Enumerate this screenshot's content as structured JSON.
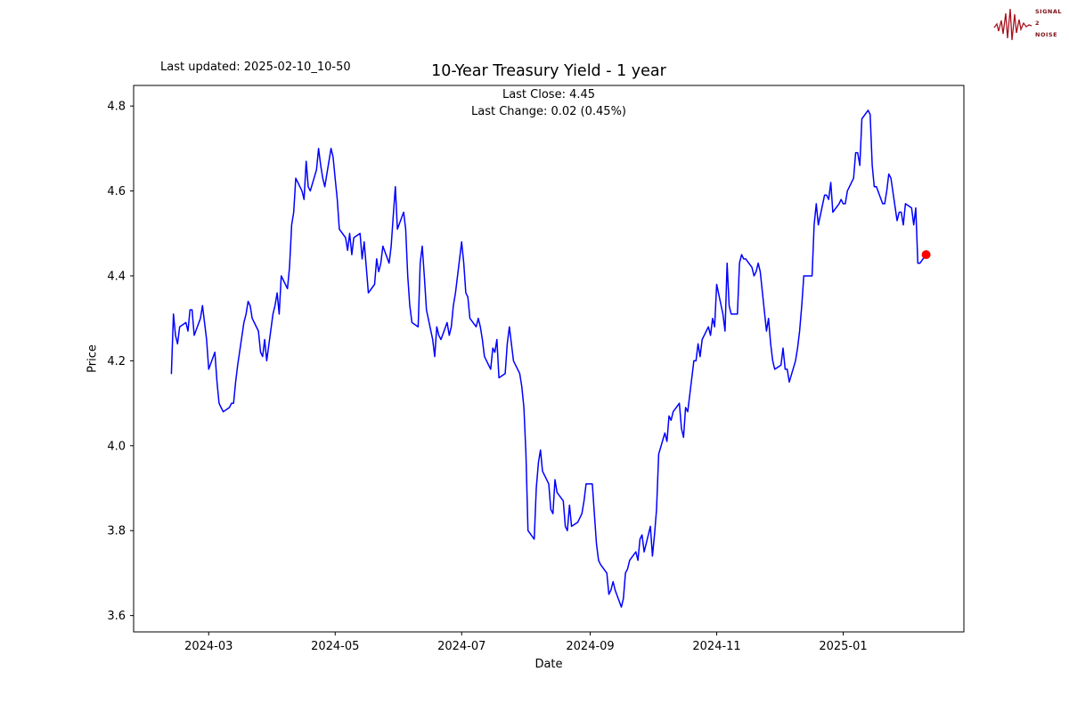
{
  "figure": {
    "last_updated": "Last updated: 2025-02-10_10-50",
    "title": "10-Year Treasury Yield - 1 year",
    "subtitle_line1": "Last Close: 4.45",
    "subtitle_line2": "Last Change: 0.02 (0.45%)"
  },
  "logo": {
    "line1": "SIGNAL",
    "line2": "2",
    "line3": "NOISE",
    "color": "#a6121f"
  },
  "chart_data": {
    "type": "line",
    "title": "10-Year Treasury Yield - 1 year",
    "xlabel": "Date",
    "ylabel": "Price",
    "legend": "none",
    "grid": false,
    "series_name": "10-Year Treasury Yield",
    "series_color": "#0000ff",
    "marker_color": "#ff0000",
    "last_close": 4.45,
    "last_change": "0.02 (0.45%)",
    "start_date": "2024-02-12",
    "end_date": "2025-02-10",
    "frequency": "business_days",
    "ylim_data": [
      3.62,
      4.79
    ],
    "yticks": [
      {
        "value": 3.6,
        "label": "3.6"
      },
      {
        "value": 3.8,
        "label": "3.8"
      },
      {
        "value": 4.0,
        "label": "4.0"
      },
      {
        "value": 4.2,
        "label": "4.2"
      },
      {
        "value": 4.4,
        "label": "4.4"
      },
      {
        "value": 4.6,
        "label": "4.6"
      },
      {
        "value": 4.8,
        "label": "4.8"
      }
    ],
    "xticks": [
      {
        "date": "2024-03-01",
        "label": "2024-03"
      },
      {
        "date": "2024-05-01",
        "label": "2024-05"
      },
      {
        "date": "2024-07-01",
        "label": "2024-07"
      },
      {
        "date": "2024-09-01",
        "label": "2024-09"
      },
      {
        "date": "2024-11-01",
        "label": "2024-11"
      },
      {
        "date": "2025-01-01",
        "label": "2025-01"
      }
    ],
    "values": [
      4.17,
      4.31,
      4.26,
      4.24,
      4.28,
      4.29,
      4.27,
      4.32,
      4.32,
      4.26,
      4.3,
      4.33,
      4.29,
      4.25,
      4.18,
      4.22,
      4.15,
      4.1,
      4.09,
      4.08,
      4.09,
      4.1,
      4.1,
      4.15,
      4.19,
      4.29,
      4.31,
      4.34,
      4.33,
      4.3,
      4.27,
      4.22,
      4.21,
      4.25,
      4.2,
      4.31,
      4.33,
      4.36,
      4.31,
      4.4,
      4.37,
      4.42,
      4.52,
      4.55,
      4.63,
      4.6,
      4.58,
      4.67,
      4.61,
      4.6,
      4.65,
      4.7,
      4.66,
      4.63,
      4.61,
      4.7,
      4.68,
      4.63,
      4.58,
      4.51,
      4.49,
      4.46,
      4.5,
      4.45,
      4.49,
      4.5,
      4.44,
      4.48,
      4.42,
      4.36,
      4.38,
      4.44,
      4.41,
      4.43,
      4.47,
      4.43,
      4.47,
      4.54,
      4.61,
      4.51,
      4.55,
      4.51,
      4.4,
      4.33,
      4.29,
      4.28,
      4.43,
      4.47,
      4.4,
      4.32,
      4.25,
      4.21,
      4.28,
      4.26,
      4.25,
      4.29,
      4.26,
      4.28,
      4.33,
      4.36,
      4.48,
      4.43,
      4.36,
      4.35,
      4.3,
      4.28,
      4.3,
      4.28,
      4.25,
      4.21,
      4.18,
      4.23,
      4.22,
      4.25,
      4.16,
      4.17,
      4.24,
      4.28,
      4.24,
      4.2,
      4.17,
      4.14,
      4.09,
      3.98,
      3.8,
      3.78,
      3.9,
      3.96,
      3.99,
      3.94,
      3.91,
      3.85,
      3.84,
      3.92,
      3.89,
      3.87,
      3.81,
      3.8,
      3.86,
      3.81,
      3.82,
      3.83,
      3.84,
      3.87,
      3.91,
      3.91,
      3.84,
      3.77,
      3.73,
      3.72,
      3.7,
      3.65,
      3.66,
      3.68,
      3.66,
      3.62,
      3.64,
      3.7,
      3.71,
      3.73,
      3.75,
      3.73,
      3.78,
      3.79,
      3.75,
      3.81,
      3.74,
      3.79,
      3.85,
      3.98,
      4.03,
      4.01,
      4.07,
      4.06,
      4.08,
      4.1,
      4.04,
      4.02,
      4.09,
      4.08,
      4.2,
      4.2,
      4.24,
      4.21,
      4.25,
      4.28,
      4.26,
      4.3,
      4.28,
      4.38,
      4.31,
      4.27,
      4.43,
      4.33,
      4.31,
      4.31,
      4.43,
      4.45,
      4.44,
      4.44,
      4.42,
      4.4,
      4.41,
      4.43,
      4.41,
      4.27,
      4.3,
      4.24,
      4.2,
      4.18,
      4.19,
      4.23,
      4.18,
      4.18,
      4.15,
      4.2,
      4.23,
      4.27,
      4.33,
      4.4,
      4.4,
      4.4,
      4.52,
      4.57,
      4.52,
      4.59,
      4.59,
      4.58,
      4.62,
      4.55,
      4.57,
      4.58,
      4.57,
      4.57,
      4.6,
      4.63,
      4.69,
      4.69,
      4.66,
      4.77,
      4.79,
      4.78,
      4.66,
      4.61,
      4.61,
      4.57,
      4.57,
      4.6,
      4.64,
      4.63,
      4.53,
      4.55,
      4.55,
      4.52,
      4.57,
      4.56,
      4.52,
      4.56,
      4.43,
      4.43,
      4.45
    ]
  }
}
